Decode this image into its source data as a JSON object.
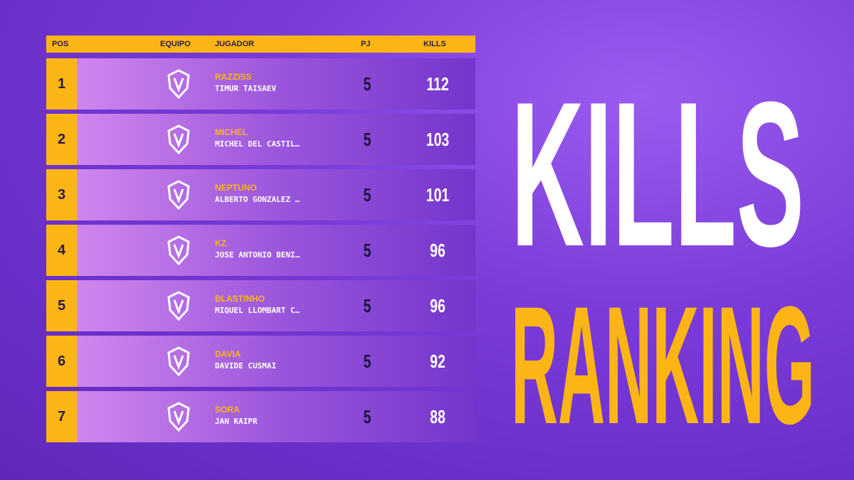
{
  "title": {
    "line1": "KILLS",
    "line2": "RANKING"
  },
  "table": {
    "columns": [
      "POS",
      "EQUIPO",
      "JUGADOR",
      "PJ",
      "KILLS"
    ],
    "rows": [
      {
        "pos": "1",
        "nick": "RAZZISS",
        "name": "TIMUR TAISAEV",
        "pj": 5,
        "kills": 112
      },
      {
        "pos": "2",
        "nick": "MICHEL",
        "name": "MICHEL DEL CASTIL…",
        "pj": 5,
        "kills": 103
      },
      {
        "pos": "3",
        "nick": "NEPTUNO",
        "name": "ALBERTO GONZALEZ …",
        "pj": 5,
        "kills": 101
      },
      {
        "pos": "4",
        "nick": "KZ",
        "name": "JOSE ANTONIO BENI…",
        "pj": 5,
        "kills": 96
      },
      {
        "pos": "5",
        "nick": "BLASTINHO",
        "name": "MIQUEL LLOMBART C…",
        "pj": 5,
        "kills": 96
      },
      {
        "pos": "6",
        "nick": "DAVIA",
        "name": "DAVIDE CUSMAI",
        "pj": 5,
        "kills": 92
      },
      {
        "pos": "7",
        "nick": "SORA",
        "name": "JAN KAIPR",
        "pj": 5,
        "kills": 88
      }
    ]
  }
}
